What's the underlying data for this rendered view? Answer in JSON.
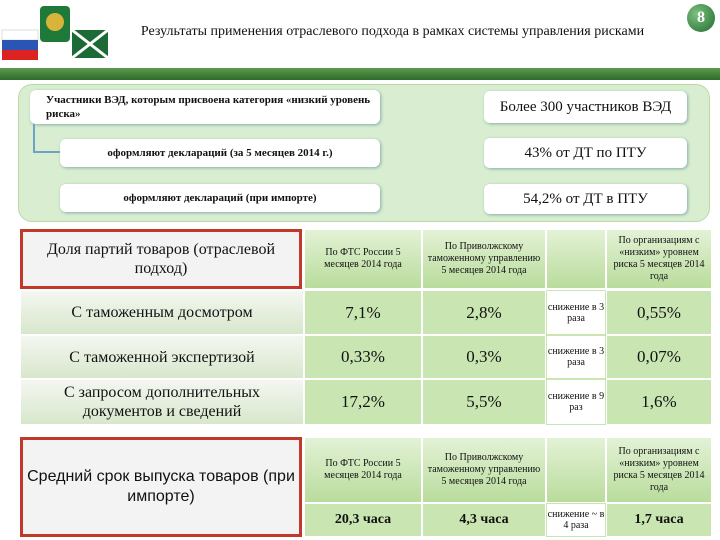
{
  "header": {
    "title": "Результаты применения отраслевого подхода в рамках системы управления рисками",
    "page_number": "8"
  },
  "summary": [
    {
      "label": "Участники ВЭД, которым присвоена категория «низкий уровень риска»",
      "value": "Более 300 участников ВЭД"
    },
    {
      "label": "оформляют деклараций (за 5 месяцев 2014 г.)",
      "value": "43% от ДТ по ПТУ"
    },
    {
      "label": "оформляют деклараций (при импорте)",
      "value": "54,2% от ДТ в ПТУ"
    }
  ],
  "table1": {
    "header_label": "Доля партий товаров (отраслевой подход)",
    "columns": [
      "По ФТС России 5 месяцев 2014 года",
      "По Приволжскому таможенному управлению 5 месяцев 2014 года",
      "По организациям с «низким» уровнем риска 5 месяцев 2014 года"
    ],
    "rows": [
      {
        "label": "С таможенным досмотром",
        "cells": [
          "7,1%",
          "2,8%",
          "снижение в 3 раза",
          "0,55%"
        ]
      },
      {
        "label": "С таможенной экспертизой",
        "cells": [
          "0,33%",
          "0,3%",
          "снижение в 3 раза",
          "0,07%"
        ]
      },
      {
        "label": "С запросом дополнительных документов и сведений",
        "cells": [
          "17,2%",
          "5,5%",
          "снижение в 9 раз",
          "1,6%"
        ]
      }
    ]
  },
  "table2": {
    "label": "Средний срок выпуска товаров (при импорте)",
    "columns": [
      "По ФТС России 5 месяцев 2014 года",
      "По Приволжскому таможенному управлению 5 месяцев 2014 года",
      "По организациям с «низким» уровнем риска 5 месяцев 2014 года"
    ],
    "cells": [
      "20,3 часа",
      "4,3 часа",
      "снижение ~ в 4 раза",
      "1,7 часа"
    ]
  }
}
